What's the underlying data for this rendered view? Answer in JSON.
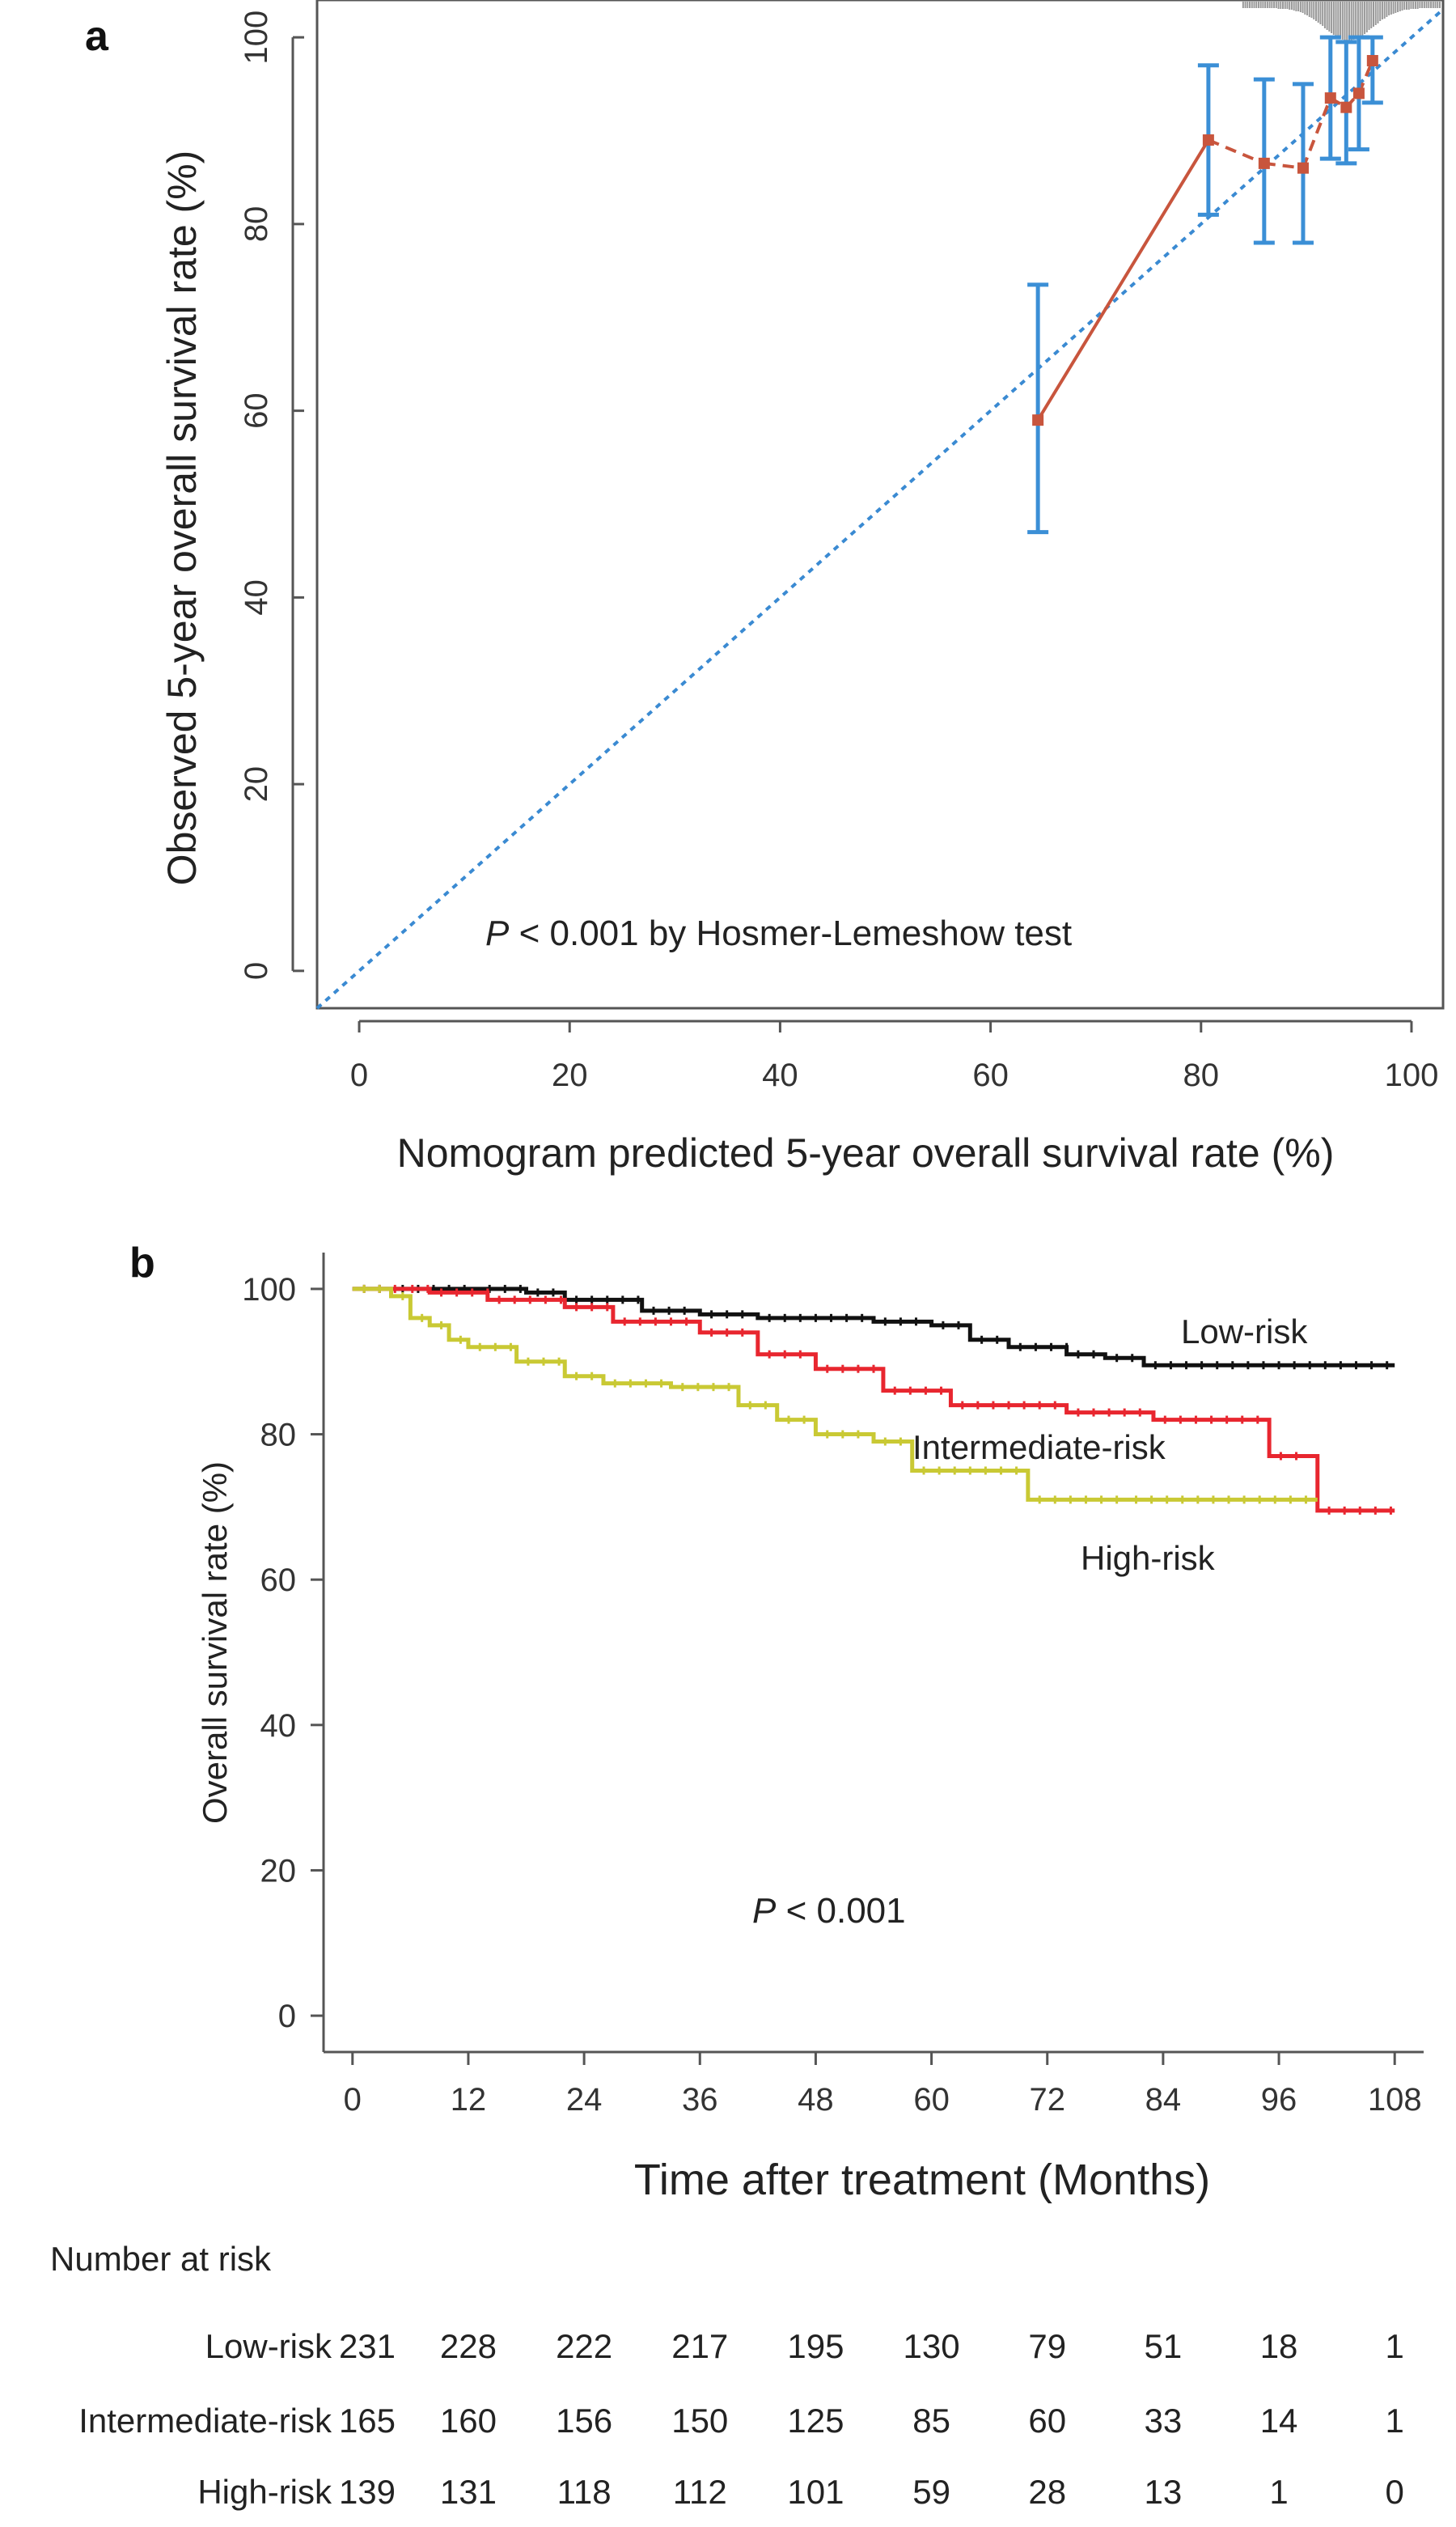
{
  "chart_data": [
    {
      "panel": "a",
      "type": "line",
      "xlabel": "Nomogram predicted 5-year overall survival rate (%)",
      "ylabel": "Observed 5-year overall survival rate (%)",
      "xlim": [
        -4,
        103
      ],
      "ylim": [
        -4,
        104
      ],
      "xticks": [
        "0",
        "20",
        "40",
        "60",
        "80",
        "100"
      ],
      "yticks": [
        "0",
        "20",
        "40",
        "60",
        "80",
        "100"
      ],
      "annotation": {
        "p_italic": "P",
        "text": " < 0.001 by Hosmer-Lemeshow test"
      },
      "reference_line": {
        "x": [
          -4,
          103
        ],
        "y": [
          -4,
          103
        ],
        "style": "dotted",
        "color": "#3a8ad2"
      },
      "series": [
        {
          "color": "#c8553d",
          "points": [
            {
              "x": 64.5,
              "y": 59,
              "lo": 47,
              "hi": 73.5
            },
            {
              "x": 80.7,
              "y": 89,
              "lo": 81,
              "hi": 97
            },
            {
              "x": 86,
              "y": 86.5,
              "lo": 78,
              "hi": 95.5
            },
            {
              "x": 89.7,
              "y": 86,
              "lo": 78,
              "hi": 95
            },
            {
              "x": 92.3,
              "y": 93.5,
              "lo": 87,
              "hi": 100
            },
            {
              "x": 93.8,
              "y": 92.5,
              "lo": 86.5,
              "hi": 99.5
            },
            {
              "x": 95,
              "y": 94,
              "lo": 88,
              "hi": 100
            },
            {
              "x": 96.3,
              "y": 97.5,
              "lo": 93,
              "hi": 100
            }
          ]
        }
      ],
      "errorbar_color": "#3b8fd6",
      "rug_color": "#999999"
    },
    {
      "panel": "b",
      "type": "line",
      "xlabel": "Time after treatment (Months)",
      "ylabel": "Overall survival rate (%)",
      "xlim": [
        -3,
        111
      ],
      "ylim": [
        -5,
        105
      ],
      "xticks": [
        "0",
        "12",
        "24",
        "36",
        "48",
        "60",
        "72",
        "84",
        "96",
        "108"
      ],
      "yticks": [
        "0",
        "20",
        "40",
        "60",
        "80",
        "100"
      ],
      "annotation": {
        "p_italic": "P",
        "text": " < 0.001"
      },
      "series": [
        {
          "name": "Low-risk",
          "color": "#111111",
          "points": [
            [
              0,
              100
            ],
            [
              4,
              100
            ],
            [
              13,
              100
            ],
            [
              18,
              99.5
            ],
            [
              22,
              98.5
            ],
            [
              30,
              97
            ],
            [
              36,
              96.5
            ],
            [
              42,
              96
            ],
            [
              54,
              95.5
            ],
            [
              60,
              95
            ],
            [
              64,
              93
            ],
            [
              68,
              92
            ],
            [
              74,
              91
            ],
            [
              78,
              90.5
            ],
            [
              82,
              89.5
            ],
            [
              108,
              89.5
            ]
          ]
        },
        {
          "name": "Intermediate-risk",
          "color": "#e8262f",
          "points": [
            [
              0,
              100
            ],
            [
              5,
              100
            ],
            [
              8,
              99.5
            ],
            [
              14,
              98.5
            ],
            [
              22,
              97.5
            ],
            [
              27,
              95.5
            ],
            [
              36,
              94
            ],
            [
              42,
              91
            ],
            [
              48,
              89
            ],
            [
              55,
              86
            ],
            [
              62,
              84
            ],
            [
              74,
              83
            ],
            [
              83,
              82
            ],
            [
              94,
              82
            ],
            [
              95,
              77
            ],
            [
              99,
              77
            ],
            [
              100,
              69.5
            ],
            [
              108,
              69.5
            ]
          ]
        },
        {
          "name": "High-risk",
          "color": "#c9c934",
          "points": [
            [
              0,
              100
            ],
            [
              4,
              99
            ],
            [
              6,
              96
            ],
            [
              8,
              95
            ],
            [
              10,
              93
            ],
            [
              12,
              92
            ],
            [
              17,
              90
            ],
            [
              22,
              88
            ],
            [
              26,
              87
            ],
            [
              33,
              86.5
            ],
            [
              40,
              84
            ],
            [
              44,
              82
            ],
            [
              48,
              80
            ],
            [
              54,
              79
            ],
            [
              58,
              75
            ],
            [
              66,
              75
            ],
            [
              70,
              71
            ],
            [
              80,
              71
            ],
            [
              100,
              71
            ]
          ]
        }
      ],
      "labels": [
        "Low-risk",
        "Intermediate-risk",
        "High-risk"
      ],
      "number_at_risk": {
        "title": "Number at risk",
        "rows": [
          {
            "group": "Low-risk",
            "values": [
              "231",
              "228",
              "222",
              "217",
              "195",
              "130",
              "79",
              "51",
              "18",
              "1"
            ]
          },
          {
            "group": "Intermediate-risk",
            "values": [
              "165",
              "160",
              "156",
              "150",
              "125",
              "85",
              "60",
              "33",
              "14",
              "1"
            ]
          },
          {
            "group": "High-risk",
            "values": [
              "139",
              "131",
              "118",
              "112",
              "101",
              "59",
              "28",
              "13",
              "1",
              "0"
            ]
          }
        ]
      }
    }
  ]
}
